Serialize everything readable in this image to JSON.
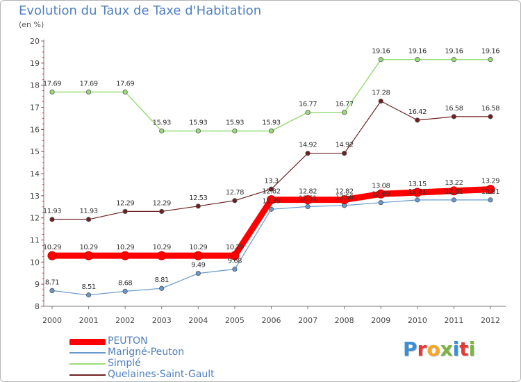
{
  "title": "Evolution du Taux de Taxe d'Habitation",
  "unit_label": "(en %)",
  "logo": {
    "text": "Proxiti",
    "letters": [
      {
        "ch": "P",
        "color": "#3a8fd6"
      },
      {
        "ch": "r",
        "color": "#e53935"
      },
      {
        "ch": "o",
        "color": "#f5a623"
      },
      {
        "ch": "x",
        "color": "#7cb342"
      },
      {
        "ch": "i",
        "color": "#3a8fd6"
      },
      {
        "ch": "t",
        "color": "#e53935"
      },
      {
        "ch": "i",
        "color": "#7cb342"
      }
    ]
  },
  "chart_data": {
    "type": "line",
    "title": "Evolution du Taux de Taxe d'Habitation",
    "ylabel": "(en %)",
    "xlabel": "",
    "x": [
      "2000",
      "2001",
      "2002",
      "2003",
      "2004",
      "2005",
      "2006",
      "2007",
      "2008",
      "2009",
      "2010",
      "2011",
      "2012"
    ],
    "ylim": [
      8,
      20
    ],
    "yticks": [
      8,
      9,
      10,
      11,
      12,
      13,
      14,
      15,
      16,
      17,
      18,
      19,
      20
    ],
    "grid": false,
    "legend_position": "bottom-left",
    "series": [
      {
        "name": "Quelaines-Saint-Gault",
        "color": "#6b1f1f",
        "width": 1.2,
        "values": [
          11.93,
          11.93,
          12.29,
          12.29,
          12.53,
          12.78,
          13.3,
          14.92,
          14.92,
          17.28,
          16.42,
          16.58,
          16.58
        ]
      },
      {
        "name": "Simplé",
        "color": "#99dd77",
        "width": 1.5,
        "values": [
          17.69,
          17.69,
          17.69,
          15.93,
          15.93,
          15.93,
          15.93,
          16.77,
          16.77,
          19.16,
          19.16,
          19.16,
          19.16
        ]
      },
      {
        "name": "Marigné-Peuton",
        "color": "#6699cc",
        "width": 1.2,
        "values": [
          8.71,
          8.51,
          8.68,
          8.81,
          9.49,
          9.68,
          12.39,
          12.51,
          12.56,
          12.69,
          12.81,
          12.81,
          12.81
        ]
      },
      {
        "name": "PEUTON",
        "color": "#ff0000",
        "width": 9,
        "values": [
          10.29,
          10.29,
          10.29,
          10.29,
          10.29,
          10.29,
          12.82,
          12.82,
          12.82,
          13.08,
          13.15,
          13.22,
          13.29
        ]
      }
    ],
    "data_labels": {
      "PEUTON": [
        "10.29",
        "10.29",
        "10.29",
        "10.29",
        "10.29",
        "10.29",
        "12.82",
        "12.82",
        "12.82",
        "13.08",
        "13.15",
        "13.22",
        "13.29"
      ],
      "Marigné-Peuton": [
        "8.71",
        "8.51",
        "8.68",
        "8.81",
        "9.49",
        "9.68",
        "12.39",
        "12.51",
        "12.56",
        "12.69",
        "12.81",
        "12.81",
        "12.81"
      ],
      "Simplé": [
        "17.69",
        "17.69",
        "17.69",
        "15.93",
        "15.93",
        "15.93",
        "15.93",
        "16.77",
        "16.77",
        "19.16",
        "19.16",
        "19.16",
        "19.16"
      ],
      "Quelaines-Saint-Gault": [
        "11.93",
        "11.93",
        "12.29",
        "12.29",
        "12.53",
        "12.78",
        "13.3",
        "14.92",
        "14.92",
        "17.28",
        "16.42",
        "16.58",
        "16.58"
      ]
    }
  },
  "legend": [
    {
      "label": "PEUTON",
      "color": "#ff0000",
      "thick": 9
    },
    {
      "label": "Marigné-Peuton",
      "color": "#6699cc",
      "thick": 2
    },
    {
      "label": "Simplé",
      "color": "#99dd77",
      "thick": 2
    },
    {
      "label": "Quelaines-Saint-Gault",
      "color": "#6b1f1f",
      "thick": 2
    }
  ]
}
